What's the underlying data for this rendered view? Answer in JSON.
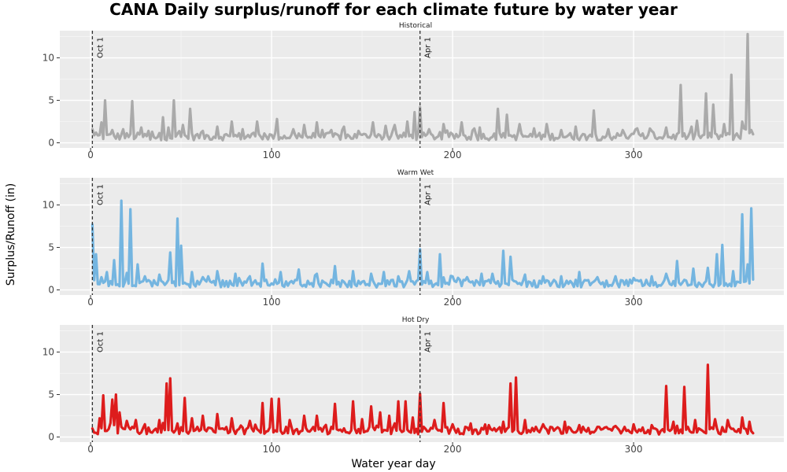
{
  "chart_data": {
    "type": "line",
    "title": "CANA Daily surplus/runoff for each climate future by water year",
    "xlabel": "Water year day",
    "ylabel": "Surplus/Runoff (in)",
    "xlim": [
      -17,
      383
    ],
    "ylim": [
      -0.6,
      13.2
    ],
    "xticks": [
      0,
      100,
      200,
      300
    ],
    "yticks": [
      0,
      5,
      10
    ],
    "grid": true,
    "legend": "none",
    "vlines": [
      {
        "x": 1,
        "label": "Oct 1"
      },
      {
        "x": 182,
        "label": "Apr 1"
      }
    ],
    "panels": [
      {
        "name": "Historical",
        "color": "#AAAAAA",
        "x_start": 1,
        "x_end": 366,
        "base": 0.3,
        "peaks": [
          [
            1,
            1.6
          ],
          [
            3,
            1.2
          ],
          [
            6,
            2.4
          ],
          [
            8,
            5.0
          ],
          [
            12,
            1.5
          ],
          [
            18,
            1.6
          ],
          [
            23,
            4.9
          ],
          [
            28,
            1.8
          ],
          [
            34,
            1.3
          ],
          [
            40,
            3.0
          ],
          [
            43,
            1.8
          ],
          [
            46,
            5.0
          ],
          [
            51,
            2.1
          ],
          [
            55,
            4.0
          ],
          [
            62,
            1.4
          ],
          [
            70,
            1.9
          ],
          [
            78,
            2.5
          ],
          [
            84,
            1.6
          ],
          [
            92,
            2.5
          ],
          [
            103,
            2.8
          ],
          [
            112,
            1.6
          ],
          [
            118,
            2.1
          ],
          [
            125,
            2.4
          ],
          [
            133,
            1.5
          ],
          [
            140,
            1.9
          ],
          [
            148,
            1.4
          ],
          [
            156,
            2.4
          ],
          [
            163,
            2.0
          ],
          [
            168,
            2.1
          ],
          [
            175,
            2.5
          ],
          [
            179,
            3.6
          ],
          [
            182,
            4.2
          ],
          [
            187,
            1.6
          ],
          [
            195,
            2.2
          ],
          [
            205,
            2.4
          ],
          [
            215,
            1.8
          ],
          [
            225,
            4.0
          ],
          [
            230,
            3.3
          ],
          [
            237,
            2.2
          ],
          [
            245,
            1.7
          ],
          [
            252,
            2.2
          ],
          [
            260,
            1.5
          ],
          [
            268,
            1.9
          ],
          [
            278,
            3.8
          ],
          [
            286,
            1.6
          ],
          [
            294,
            1.5
          ],
          [
            302,
            1.7
          ],
          [
            310,
            1.4
          ],
          [
            318,
            1.8
          ],
          [
            326,
            6.8
          ],
          [
            335,
            2.6
          ],
          [
            340,
            5.8
          ],
          [
            344,
            4.5
          ],
          [
            350,
            2.2
          ],
          [
            354,
            8.0
          ],
          [
            360,
            2.5
          ],
          [
            363,
            12.8
          ],
          [
            365,
            1.5
          ]
        ]
      },
      {
        "name": "Warm Wet",
        "color": "#74B5E0",
        "x_start": 1,
        "x_end": 366,
        "base": 0.3,
        "peaks": [
          [
            1,
            7.7
          ],
          [
            3,
            4.2
          ],
          [
            6,
            1.5
          ],
          [
            9,
            2.1
          ],
          [
            13,
            3.5
          ],
          [
            17,
            10.5
          ],
          [
            20,
            2.0
          ],
          [
            22,
            9.5
          ],
          [
            26,
            3.0
          ],
          [
            30,
            1.6
          ],
          [
            38,
            1.8
          ],
          [
            44,
            4.4
          ],
          [
            48,
            8.4
          ],
          [
            50,
            5.2
          ],
          [
            56,
            2.1
          ],
          [
            62,
            1.5
          ],
          [
            70,
            2.2
          ],
          [
            80,
            1.9
          ],
          [
            88,
            1.6
          ],
          [
            95,
            3.1
          ],
          [
            105,
            2.1
          ],
          [
            115,
            2.4
          ],
          [
            125,
            1.9
          ],
          [
            135,
            2.8
          ],
          [
            145,
            2.2
          ],
          [
            155,
            1.9
          ],
          [
            162,
            2.1
          ],
          [
            170,
            1.6
          ],
          [
            176,
            2.2
          ],
          [
            182,
            4.8
          ],
          [
            186,
            2.1
          ],
          [
            193,
            4.2
          ],
          [
            200,
            1.6
          ],
          [
            208,
            1.5
          ],
          [
            216,
            1.9
          ],
          [
            222,
            1.9
          ],
          [
            228,
            4.6
          ],
          [
            232,
            3.9
          ],
          [
            240,
            1.8
          ],
          [
            250,
            1.6
          ],
          [
            260,
            1.6
          ],
          [
            270,
            2.1
          ],
          [
            280,
            1.5
          ],
          [
            290,
            1.6
          ],
          [
            300,
            1.4
          ],
          [
            310,
            1.6
          ],
          [
            318,
            1.9
          ],
          [
            324,
            3.4
          ],
          [
            333,
            2.5
          ],
          [
            341,
            2.6
          ],
          [
            346,
            4.2
          ],
          [
            349,
            5.3
          ],
          [
            355,
            2.2
          ],
          [
            360,
            8.9
          ],
          [
            363,
            3.0
          ],
          [
            365,
            9.6
          ]
        ]
      },
      {
        "name": "Hot Dry",
        "color": "#DD1C1C",
        "x_start": 1,
        "x_end": 366,
        "base": 0.3,
        "peaks": [
          [
            1,
            1.0
          ],
          [
            5,
            2.2
          ],
          [
            7,
            4.9
          ],
          [
            12,
            4.4
          ],
          [
            14,
            5.0
          ],
          [
            16,
            2.9
          ],
          [
            20,
            1.9
          ],
          [
            25,
            2.0
          ],
          [
            30,
            1.5
          ],
          [
            38,
            2.0
          ],
          [
            42,
            6.3
          ],
          [
            44,
            6.9
          ],
          [
            48,
            1.6
          ],
          [
            52,
            4.6
          ],
          [
            56,
            2.2
          ],
          [
            62,
            2.5
          ],
          [
            70,
            2.7
          ],
          [
            78,
            2.2
          ],
          [
            88,
            1.9
          ],
          [
            95,
            4.0
          ],
          [
            100,
            4.5
          ],
          [
            104,
            4.5
          ],
          [
            110,
            2.0
          ],
          [
            118,
            2.5
          ],
          [
            125,
            2.5
          ],
          [
            135,
            3.9
          ],
          [
            145,
            4.2
          ],
          [
            150,
            2.1
          ],
          [
            155,
            3.6
          ],
          [
            160,
            2.9
          ],
          [
            165,
            2.5
          ],
          [
            170,
            4.2
          ],
          [
            174,
            4.2
          ],
          [
            178,
            2.3
          ],
          [
            182,
            5.1
          ],
          [
            190,
            2.0
          ],
          [
            195,
            4.0
          ],
          [
            200,
            1.5
          ],
          [
            210,
            1.6
          ],
          [
            220,
            1.4
          ],
          [
            228,
            1.8
          ],
          [
            232,
            6.3
          ],
          [
            235,
            7.0
          ],
          [
            240,
            2.0
          ],
          [
            250,
            1.5
          ],
          [
            262,
            1.8
          ],
          [
            270,
            1.4
          ],
          [
            280,
            1.2
          ],
          [
            290,
            1.3
          ],
          [
            300,
            1.5
          ],
          [
            310,
            1.4
          ],
          [
            318,
            6.0
          ],
          [
            322,
            1.8
          ],
          [
            328,
            5.9
          ],
          [
            334,
            2.0
          ],
          [
            341,
            8.5
          ],
          [
            345,
            2.1
          ],
          [
            352,
            2.0
          ],
          [
            360,
            2.3
          ],
          [
            364,
            1.8
          ]
        ]
      }
    ]
  }
}
